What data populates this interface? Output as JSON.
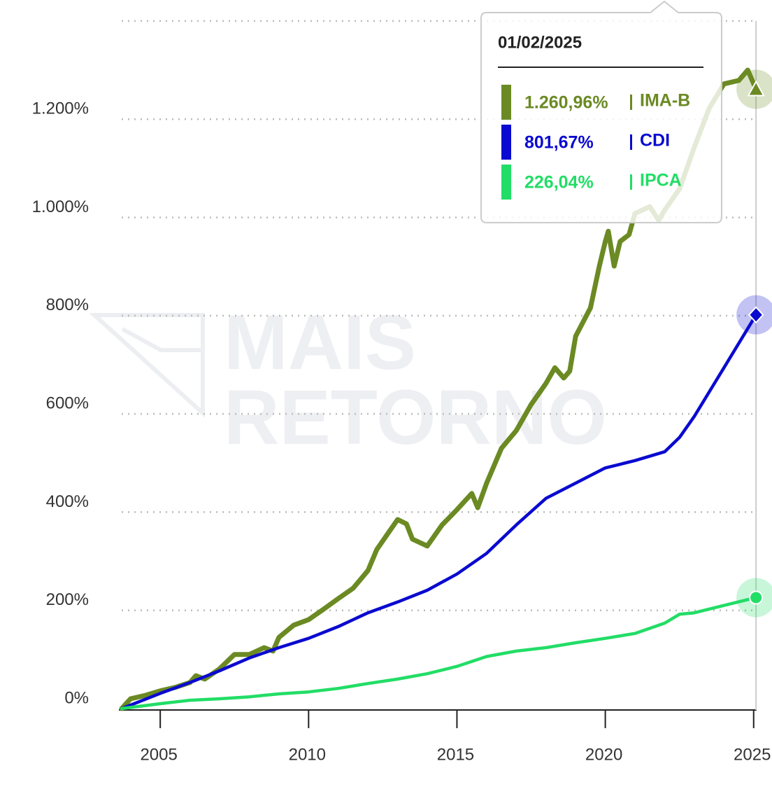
{
  "chart_data": {
    "type": "line",
    "watermark": [
      "MAIS",
      "RETORNO"
    ],
    "xlim": [
      2003.7,
      2025.1
    ],
    "xticks": [
      2005,
      2010,
      2015,
      2020,
      2025
    ],
    "ylim": [
      0,
      1400
    ],
    "yticks": [
      {
        "value": 0,
        "label": "0%"
      },
      {
        "value": 200,
        "label": "200%"
      },
      {
        "value": 400,
        "label": "400%"
      },
      {
        "value": 600,
        "label": "600%"
      },
      {
        "value": 800,
        "label": "800%"
      },
      {
        "value": 1000,
        "label": "1.000%"
      },
      {
        "value": 1200,
        "label": "1.200%"
      }
    ],
    "grid": true,
    "series": [
      {
        "name": "IMA-B",
        "color": "#6b8a23",
        "x": [
          2003.7,
          2004.0,
          2004.5,
          2005.0,
          2005.5,
          2006.0,
          2006.2,
          2006.5,
          2007.0,
          2007.5,
          2008.0,
          2008.5,
          2008.8,
          2009.0,
          2009.5,
          2010.0,
          2010.5,
          2011.0,
          2011.5,
          2012.0,
          2012.3,
          2012.7,
          2013.0,
          2013.3,
          2013.5,
          2014.0,
          2014.5,
          2015.0,
          2015.5,
          2015.7,
          2016.0,
          2016.5,
          2017.0,
          2017.5,
          2018.0,
          2018.3,
          2018.6,
          2018.8,
          2019.0,
          2019.5,
          2019.8,
          2020.0,
          2020.1,
          2020.3,
          2020.5,
          2020.8,
          2021.0,
          2021.5,
          2021.8,
          2022.0,
          2022.5,
          2023.0,
          2023.5,
          2024.0,
          2024.5,
          2024.8,
          2025.08
        ],
        "values": [
          0,
          20,
          27,
          36,
          43,
          53,
          67,
          60,
          81,
          110,
          110,
          124,
          117,
          145,
          170,
          181,
          202,
          224,
          245,
          281,
          324,
          359,
          385,
          376,
          345,
          331,
          374,
          405,
          438,
          409,
          459,
          530,
          566,
          619,
          662,
          694,
          673,
          687,
          758,
          816,
          901,
          951,
          972,
          901,
          951,
          965,
          1008,
          1022,
          994,
          1015,
          1058,
          1143,
          1222,
          1272,
          1279,
          1300,
          1260.96
        ]
      },
      {
        "name": "CDI",
        "color": "#0a0ad0",
        "x": [
          2003.7,
          2005,
          2006,
          2007,
          2008,
          2009,
          2010,
          2011,
          2012,
          2013,
          2014,
          2015,
          2016,
          2017,
          2018,
          2019,
          2020,
          2021,
          2022,
          2022.5,
          2023,
          2024,
          2025.08
        ],
        "values": [
          0,
          31,
          53,
          77,
          103,
          124,
          143,
          167,
          195,
          217,
          241,
          274,
          316,
          374,
          428,
          459,
          490,
          505,
          523,
          552,
          595,
          694,
          801.67
        ]
      },
      {
        "name": "IPCA",
        "color": "#22dd66",
        "x": [
          2003.7,
          2005,
          2006,
          2007,
          2008,
          2009,
          2010,
          2011,
          2012,
          2013,
          2014,
          2015,
          2016,
          2017,
          2018,
          2019,
          2020,
          2021,
          2022,
          2022.5,
          2023,
          2024,
          2025.08
        ],
        "values": [
          0,
          10,
          17,
          20,
          24,
          30,
          34,
          41,
          51,
          60,
          71,
          86,
          106,
          117,
          124,
          134,
          143,
          153,
          174,
          192,
          195,
          210,
          226.04
        ]
      }
    ],
    "tooltip": {
      "title": "01/02/2025",
      "x": 2025.08,
      "values": [
        1260.96,
        801.67,
        226.04
      ],
      "value_labels": [
        "1.260,96%",
        "801,67%",
        "226,04%"
      ]
    }
  }
}
